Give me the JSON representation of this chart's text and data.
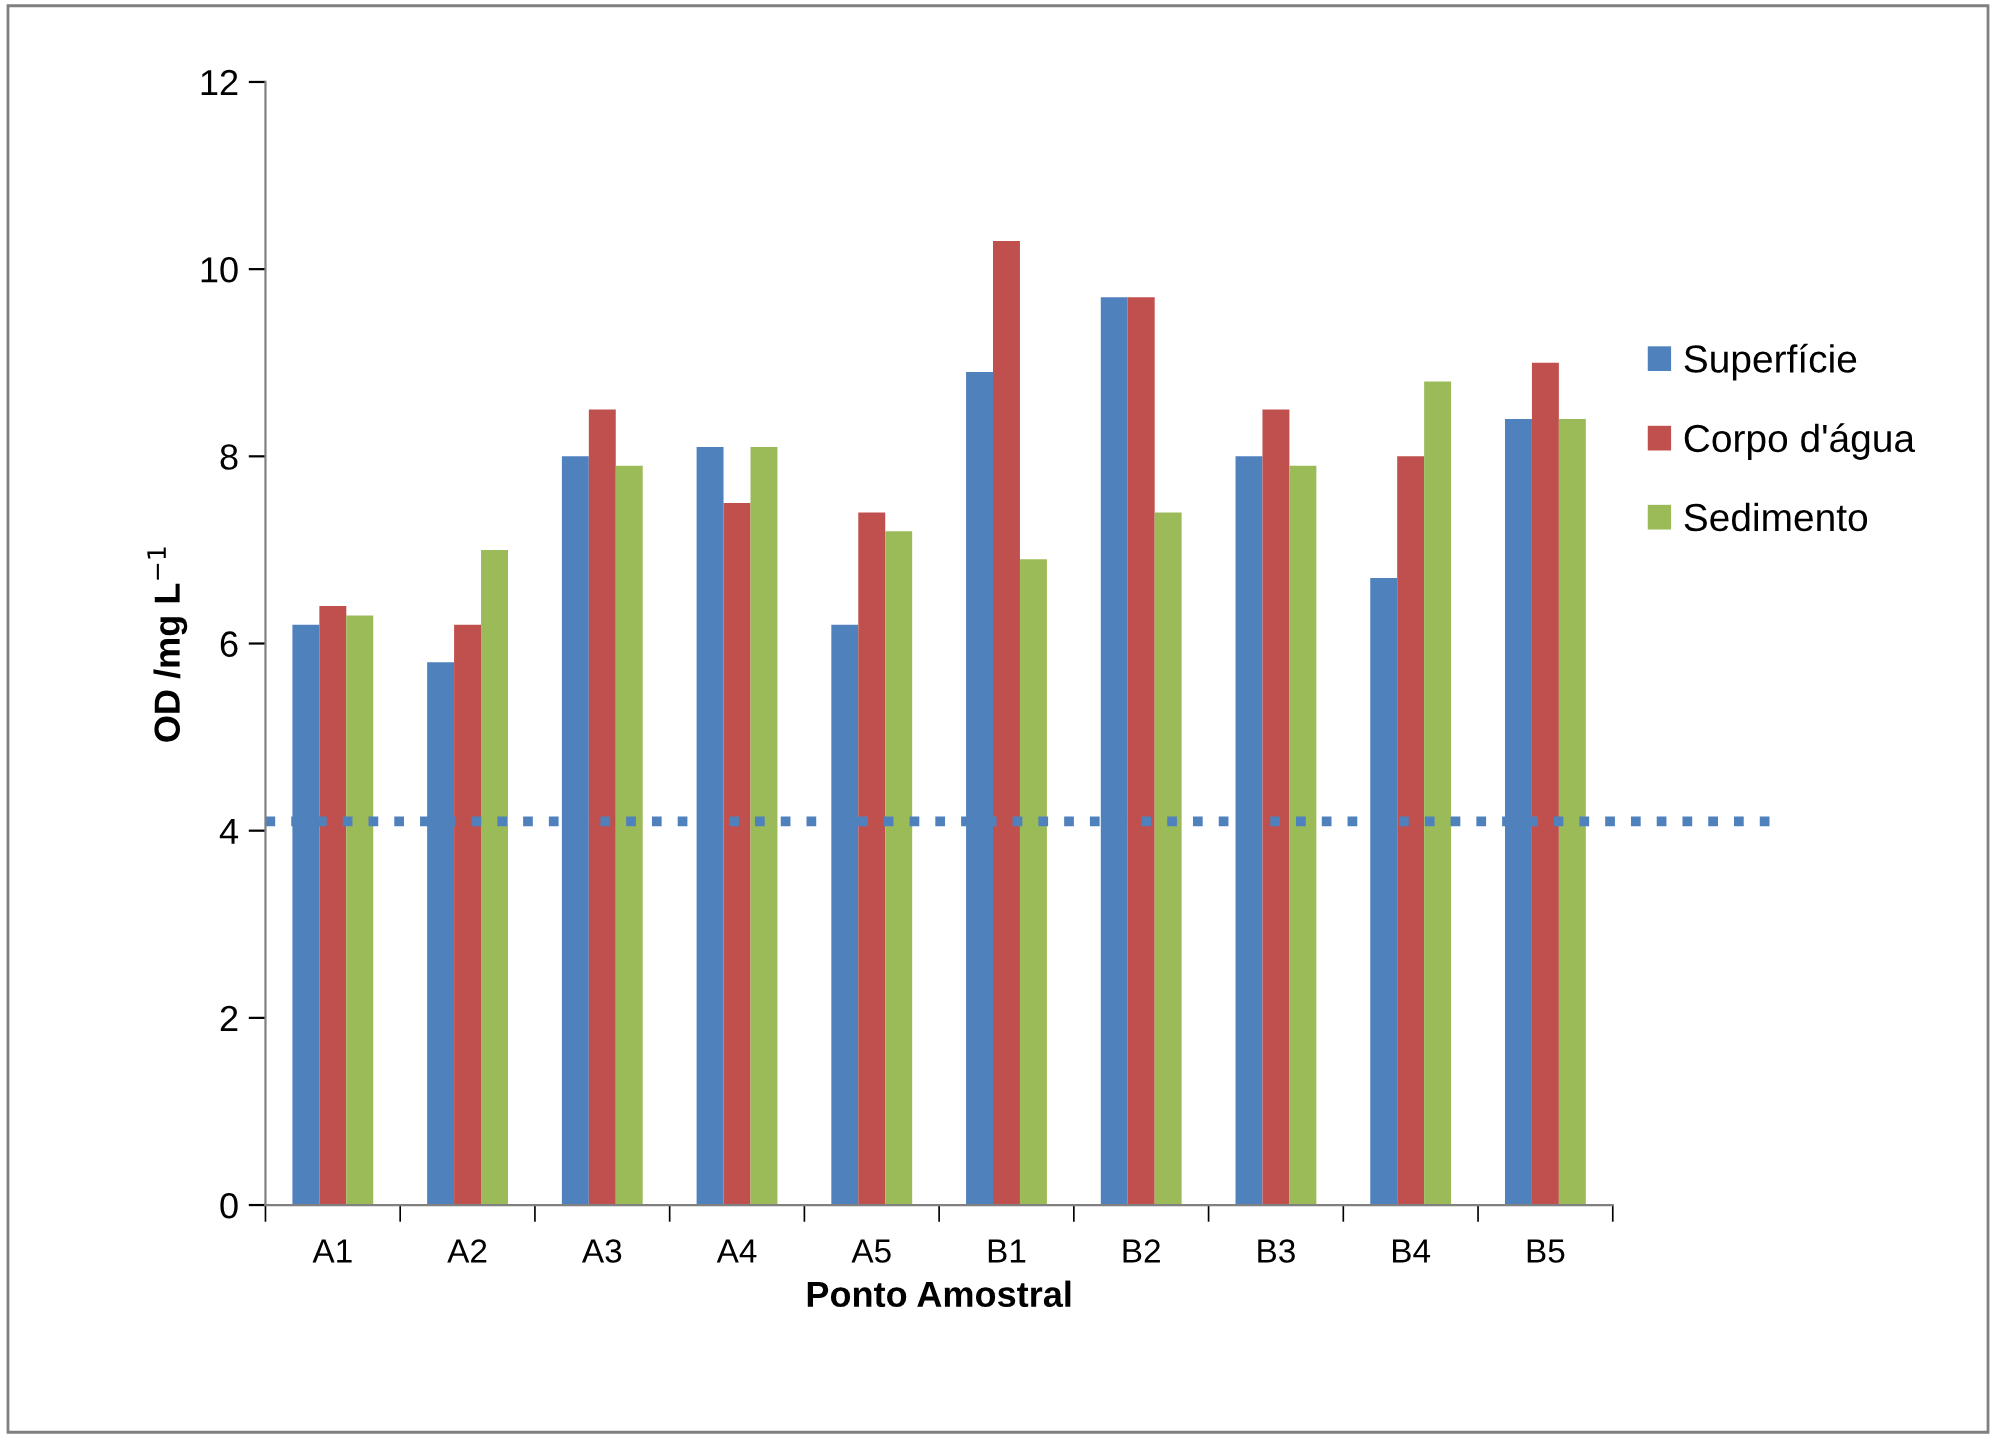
{
  "chart_data": {
    "type": "bar",
    "xlabel": "Ponto Amostral",
    "ylabel": "OD /mg L$^{−1}$",
    "categories": [
      "A1",
      "A2",
      "A3",
      "A4",
      "A5",
      "B1",
      "B2",
      "B3",
      "B4",
      "B5"
    ],
    "series": [
      {
        "name": "Superfície",
        "color": "#4f81bd",
        "values": [
          6.2,
          5.8,
          8.0,
          8.1,
          6.2,
          8.9,
          9.7,
          8.0,
          6.7,
          8.4
        ]
      },
      {
        "name": "Corpo d'água",
        "color": "#c0504d",
        "values": [
          6.4,
          6.2,
          8.5,
          7.5,
          7.4,
          10.3,
          9.7,
          8.5,
          8.0,
          9.0
        ]
      },
      {
        "name": "Sedimento",
        "color": "#9bbb59",
        "values": [
          6.3,
          7.0,
          7.9,
          8.1,
          7.2,
          6.9,
          7.4,
          7.9,
          8.8,
          8.4
        ]
      }
    ],
    "ylim": [
      0,
      12
    ],
    "yticks": [
      0,
      2,
      4,
      6,
      8,
      10,
      12
    ],
    "grid": false,
    "legend": "right",
    "ref_lines": [
      {
        "axis": "y",
        "value": 4.1,
        "color": "#4f81bd",
        "line_style": "dotted"
      }
    ]
  }
}
